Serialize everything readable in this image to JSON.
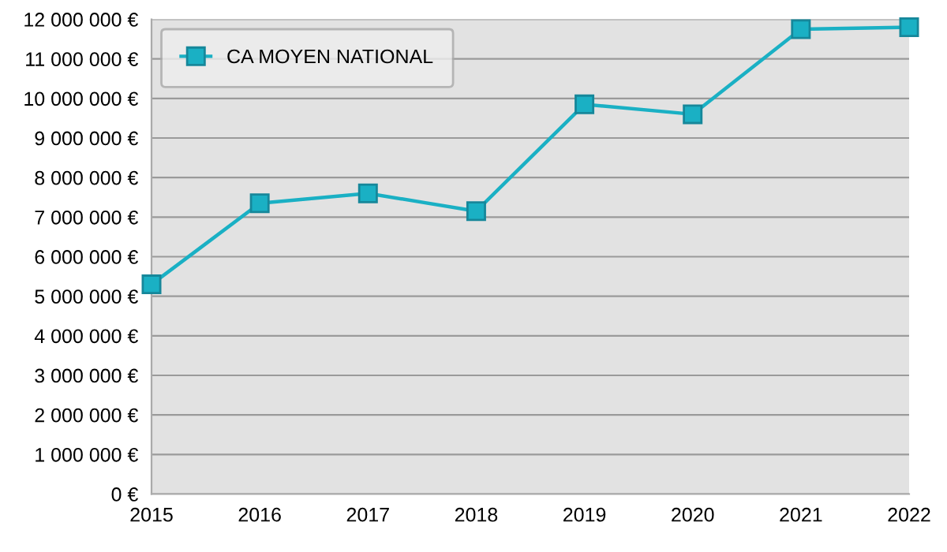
{
  "chart_data": {
    "type": "line",
    "x": [
      2015,
      2016,
      2017,
      2018,
      2019,
      2020,
      2021,
      2022
    ],
    "series": [
      {
        "name": "CA MOYEN NATIONAL",
        "color": "#1ab0c4",
        "values": [
          5300000,
          7350000,
          7600000,
          7150000,
          9850000,
          9600000,
          11750000,
          11800000
        ]
      }
    ],
    "xlim": [
      2015,
      2022
    ],
    "xticks": [
      2015,
      2016,
      2017,
      2018,
      2019,
      2020,
      2021,
      2022
    ],
    "ylim": [
      0,
      12000000
    ],
    "yticks": [
      {
        "value": 0,
        "label": "0 €"
      },
      {
        "value": 1000000,
        "label": "1 000 000 €"
      },
      {
        "value": 2000000,
        "label": "2 000 000 €"
      },
      {
        "value": 3000000,
        "label": "3 000 000 €"
      },
      {
        "value": 4000000,
        "label": "4 000 000 €"
      },
      {
        "value": 5000000,
        "label": "5 000 000 €"
      },
      {
        "value": 6000000,
        "label": "6 000 000 €"
      },
      {
        "value": 7000000,
        "label": "7 000 000 €"
      },
      {
        "value": 8000000,
        "label": "8 000 000 €"
      },
      {
        "value": 9000000,
        "label": "9 000 000 €"
      },
      {
        "value": 10000000,
        "label": "10 000 000 €"
      },
      {
        "value": 11000000,
        "label": "11 000 000 €"
      },
      {
        "value": 12000000,
        "label": "12 000 000 €"
      }
    ],
    "grid": "y",
    "legend": "top left",
    "marker": "square",
    "line_style": "solid"
  }
}
